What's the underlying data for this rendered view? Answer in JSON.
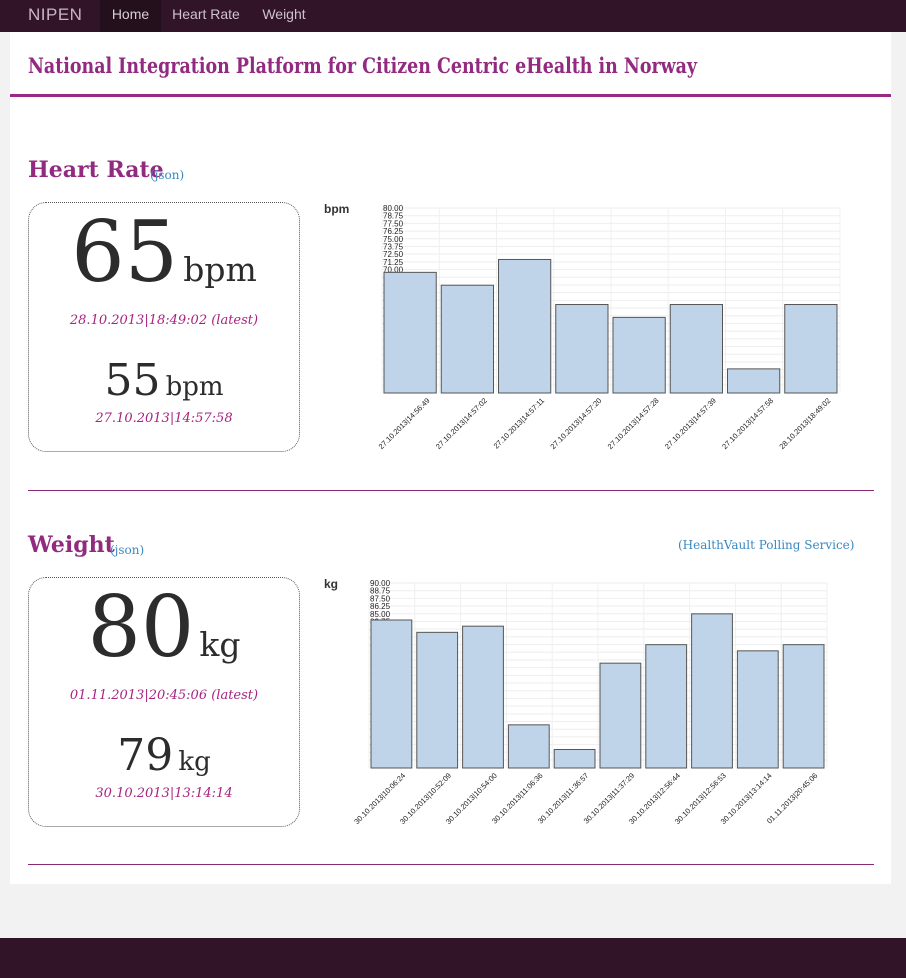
{
  "navbar": {
    "brand": "NIPEN",
    "items": [
      {
        "label": "Home",
        "active": true
      },
      {
        "label": "Heart Rate",
        "active": false
      },
      {
        "label": "Weight",
        "active": false
      }
    ]
  },
  "page": {
    "title": "National Integration Platform for Citizen Centric eHealth in Norway"
  },
  "heart_rate": {
    "title": "Heart Rate",
    "json_link": "(json)",
    "latest": {
      "value": "65",
      "unit": "bpm",
      "timestamp": "28.10.2013|18:49:02 (latest)"
    },
    "previous": {
      "value": "55",
      "unit": "bpm",
      "timestamp": "27.10.2013|14:57:58"
    }
  },
  "weight": {
    "title": "Weight",
    "json_link": "(json)",
    "service_link": "(HealthVault Polling Service)",
    "latest": {
      "value": "80",
      "unit": "kg",
      "timestamp": "01.11.2013|20:45:06 (latest)"
    },
    "previous": {
      "value": "79",
      "unit": "kg",
      "timestamp": "30.10.2013|13:14:14"
    }
  },
  "colors": {
    "accent": "#922a7f",
    "navbar": "#311428",
    "bar_fill": "#bfd4e8",
    "bar_stroke": "#555555",
    "link": "#3a89c0"
  },
  "chart_data": [
    {
      "type": "bar",
      "id": "heart-rate-chart",
      "ylabel": "bpm",
      "ylim": [
        51.25,
        80
      ],
      "grid": true,
      "yticks": [
        "80.00",
        "78.75",
        "77.50",
        "76.25",
        "75.00",
        "73.75",
        "72.50",
        "71.25",
        "70.00",
        "68.75",
        "67.50",
        "66.25",
        "65.00",
        "63.75",
        "62.50",
        "61.25",
        "60.00",
        "58.75",
        "57.50",
        "56.25",
        "55.00",
        "53.75",
        "52.50",
        "51.25"
      ],
      "categories": [
        "27.10.2013|14:56:49",
        "27.10.2013|14:57:02",
        "27.10.2013|14:57:11",
        "27.10.2013|14:57:20",
        "27.10.2013|14:57:28",
        "27.10.2013|14:57:39",
        "27.10.2013|14:57:58",
        "28.10.2013|18:49:02"
      ],
      "values": [
        70,
        68,
        72,
        65,
        63,
        65,
        55,
        65
      ]
    },
    {
      "type": "bar",
      "id": "weight-chart",
      "ylabel": "kg",
      "ylim": [
        60,
        90
      ],
      "grid": true,
      "yticks": [
        "90.00",
        "88.75",
        "87.50",
        "86.25",
        "85.00",
        "83.75",
        "82.50",
        "81.25",
        "80.00",
        "78.75",
        "77.50",
        "76.25",
        "75.00",
        "73.75",
        "72.50",
        "71.25",
        "70.00",
        "68.75",
        "67.50",
        "66.25",
        "65.00",
        "63.75",
        "62.50",
        "61.25"
      ],
      "categories": [
        "30.10.2013|10:06:24",
        "30.10.2013|10:52:09",
        "30.10.2013|10:54:00",
        "30.10.2013|11:06:36",
        "30.10.2013|11:36:57",
        "30.10.2013|11:37:29",
        "30.10.2013|12:56:44",
        "30.10.2013|12:56:53",
        "30.10.2013|13:14:14",
        "01.11.2013|20:45:06"
      ],
      "values": [
        84,
        82,
        83,
        67,
        63,
        77,
        80,
        85,
        79,
        80
      ]
    }
  ]
}
